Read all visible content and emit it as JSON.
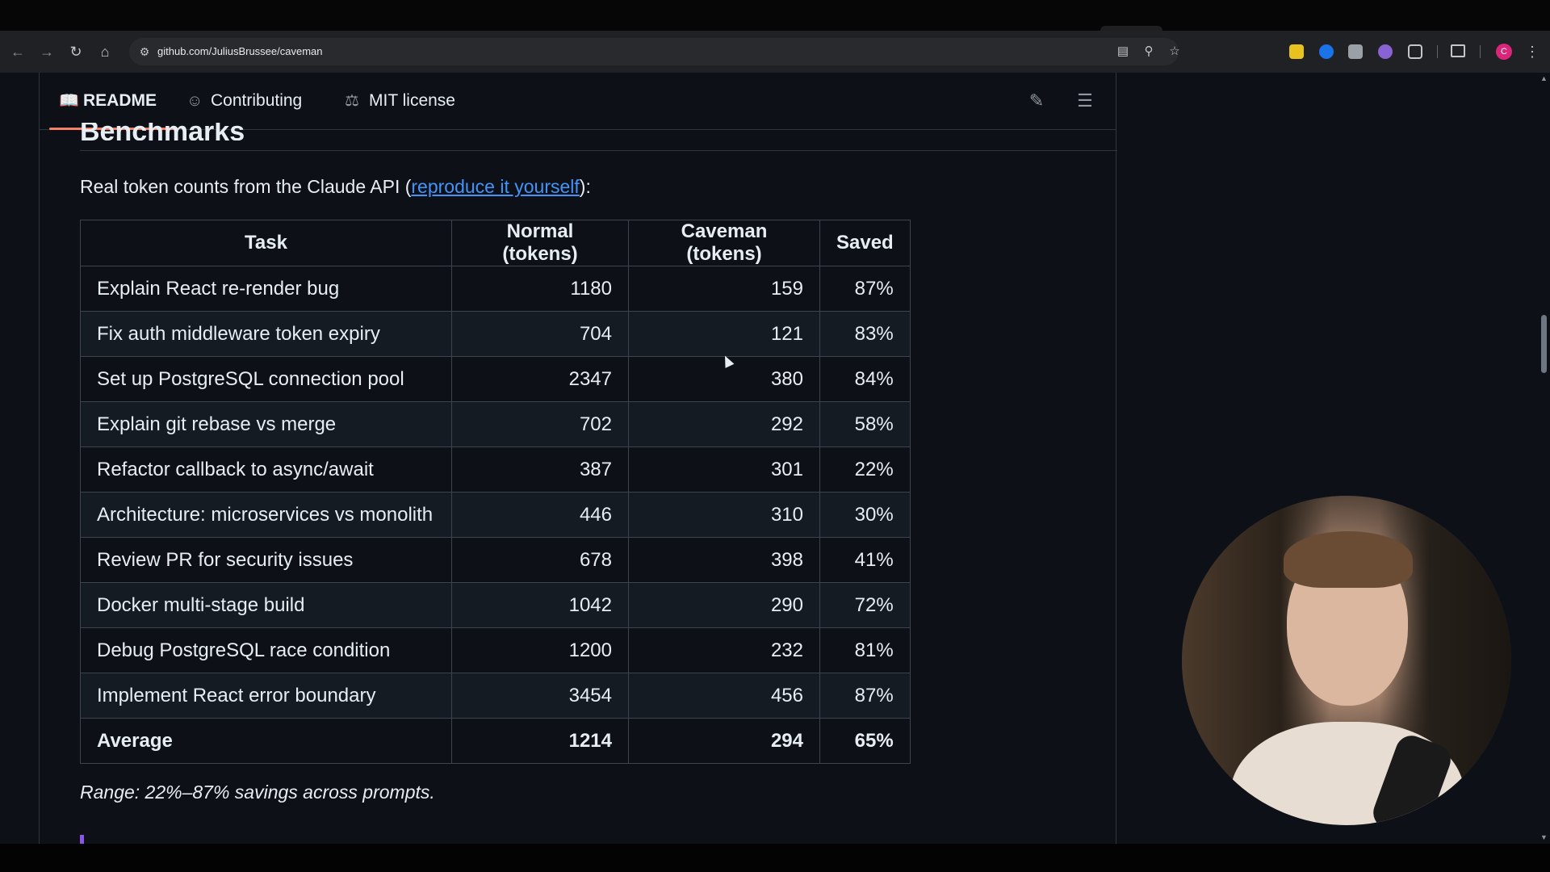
{
  "browser": {
    "url": "github.com/JuliusBrussee/caveman",
    "profile_initial": "C",
    "nav_icons": [
      "back-icon",
      "forward-icon",
      "reload-icon",
      "home-icon"
    ],
    "omnibox_icons": [
      "site-settings-icon",
      "install-app-icon",
      "zoom-icon",
      "bookmark-star-icon"
    ]
  },
  "readme_tabs": [
    {
      "label": "README",
      "icon": "book-icon",
      "active": true
    },
    {
      "label": "Contributing",
      "icon": "people-icon",
      "active": false
    },
    {
      "label": "MIT license",
      "icon": "scale-icon",
      "active": false
    }
  ],
  "section": {
    "heading": "Benchmarks",
    "intro_before": "Real token counts from the Claude API (",
    "intro_link": "reproduce it yourself",
    "intro_after": "):",
    "footer_note": "Range: 22%–87% savings across prompts."
  },
  "table": {
    "headers": [
      "Task",
      "Normal (tokens)",
      "Caveman (tokens)",
      "Saved"
    ],
    "rows": [
      [
        "Explain React re-render bug",
        "1180",
        "159",
        "87%"
      ],
      [
        "Fix auth middleware token expiry",
        "704",
        "121",
        "83%"
      ],
      [
        "Set up PostgreSQL connection pool",
        "2347",
        "380",
        "84%"
      ],
      [
        "Explain git rebase vs merge",
        "702",
        "292",
        "58%"
      ],
      [
        "Refactor callback to async/await",
        "387",
        "301",
        "22%"
      ],
      [
        "Architecture: microservices vs monolith",
        "446",
        "310",
        "30%"
      ],
      [
        "Review PR for security issues",
        "678",
        "398",
        "41%"
      ],
      [
        "Docker multi-stage build",
        "1042",
        "290",
        "72%"
      ],
      [
        "Debug PostgreSQL race condition",
        "1200",
        "232",
        "81%"
      ],
      [
        "Implement React error boundary",
        "3454",
        "456",
        "87%"
      ]
    ],
    "average": [
      "Average",
      "1214",
      "294",
      "65%"
    ]
  },
  "colors": {
    "background": "#0d1117",
    "link": "#4493f8",
    "active_tab_underline": "#f78166",
    "border": "#3d444d"
  }
}
